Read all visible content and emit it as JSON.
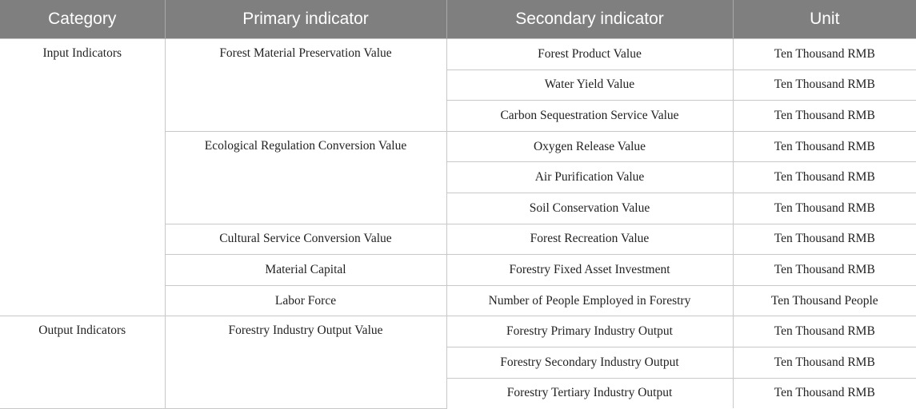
{
  "table": {
    "headers": [
      "Category",
      "Primary indicator",
      "Secondary indicator",
      "Unit"
    ],
    "categories": [
      "Input Indicators",
      "Output Indicators"
    ],
    "primary": [
      "Forest Material Preservation Value",
      "Ecological Regulation Conversion Value",
      "Cultural Service Conversion Value",
      "Material Capital",
      "Labor Force",
      "Forestry Industry Output Value"
    ],
    "rows": [
      {
        "secondary": "Forest Product Value",
        "unit": "Ten Thousand RMB"
      },
      {
        "secondary": "Water Yield Value",
        "unit": "Ten Thousand RMB"
      },
      {
        "secondary": "Carbon Sequestration Service Value",
        "unit": "Ten Thousand RMB"
      },
      {
        "secondary": "Oxygen Release Value",
        "unit": "Ten Thousand RMB"
      },
      {
        "secondary": "Air Purification Value",
        "unit": "Ten Thousand RMB"
      },
      {
        "secondary": "Soil Conservation Value",
        "unit": "Ten Thousand RMB"
      },
      {
        "secondary": "Forest Recreation Value",
        "unit": "Ten Thousand RMB"
      },
      {
        "secondary": "Forestry Fixed Asset Investment",
        "unit": "Ten Thousand RMB"
      },
      {
        "secondary": "Number of People Employed in Forestry",
        "unit": "Ten Thousand People"
      },
      {
        "secondary": "Forestry Primary Industry Output",
        "unit": "Ten Thousand RMB"
      },
      {
        "secondary": "Forestry Secondary Industry Output",
        "unit": "Ten Thousand RMB"
      },
      {
        "secondary": "Forestry Tertiary Industry Output",
        "unit": "Ten Thousand RMB"
      }
    ]
  }
}
